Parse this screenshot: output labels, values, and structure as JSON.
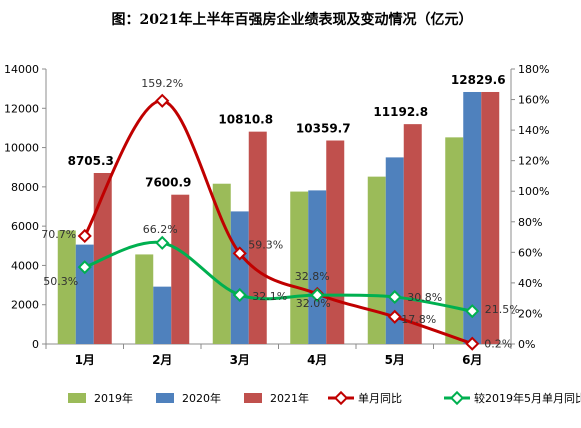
{
  "chart_data": {
    "type": "bar",
    "title": "图：2021年上半年百强房企业绩表现及变动情况（亿元）",
    "categories": [
      "1月",
      "2月",
      "3月",
      "4月",
      "5月",
      "6月"
    ],
    "y_left": {
      "ylim": [
        0,
        14000
      ],
      "ticks": [
        0,
        2000,
        4000,
        6000,
        8000,
        10000,
        12000,
        14000
      ]
    },
    "y_right": {
      "ylim": [
        0,
        180
      ],
      "ticks": [
        "0%",
        "20%",
        "40%",
        "60%",
        "80%",
        "100%",
        "120%",
        "140%",
        "160%",
        "180%"
      ]
    },
    "grid": false,
    "legend": "bottom",
    "series": [
      {
        "name": "2019年",
        "type": "bar",
        "axis": "left",
        "color": "#9bbb59",
        "values": [
          5780,
          4560,
          8160,
          7760,
          8520,
          10520
        ]
      },
      {
        "name": "2020年",
        "type": "bar",
        "axis": "left",
        "color": "#4f81bd",
        "values": [
          5060,
          2920,
          6750,
          7820,
          9500,
          12829.6
        ]
      },
      {
        "name": "2021年",
        "type": "bar",
        "axis": "left",
        "color": "#c0504d",
        "values": [
          8705.3,
          7600.9,
          10810.8,
          10359.7,
          11192.8,
          12829.6
        ]
      },
      {
        "name": "单月同比",
        "type": "line",
        "axis": "right",
        "color": "#c00000",
        "values": [
          70.7,
          159.2,
          59.3,
          32.8,
          17.8,
          0.2
        ]
      },
      {
        "name": "较2019年5月单月同比",
        "type": "line",
        "axis": "right",
        "color": "#00b050",
        "values": [
          50.3,
          66.2,
          32.1,
          32.0,
          30.8,
          21.5
        ]
      }
    ],
    "bar_labels": [
      "8705.3",
      "7600.9",
      "10810.8",
      "10359.7",
      "11192.8",
      "12829.6"
    ],
    "yoy_labels": [
      "70.7%",
      "159.2%",
      "59.3%",
      "32.8%",
      "17.8%",
      "0.2%"
    ],
    "vs2019_labels": [
      "50.3%",
      "66.2%",
      "32.1%",
      "32.0%",
      "30.8%",
      "21.5%"
    ]
  }
}
